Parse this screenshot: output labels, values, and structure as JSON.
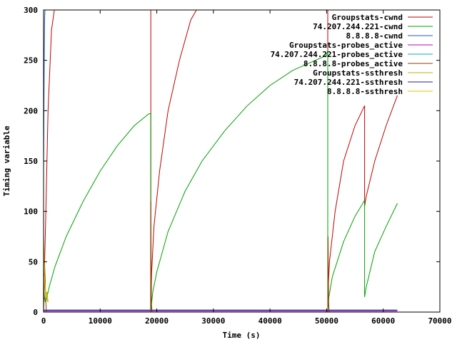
{
  "chart_data": {
    "type": "line",
    "title": "",
    "xlabel": "Time (s)",
    "ylabel": "Timing variable",
    "xlim": [
      0,
      70000
    ],
    "ylim": [
      0,
      300
    ],
    "xticks": [
      "0",
      "10000",
      "20000",
      "30000",
      "40000",
      "50000",
      "60000",
      "70000"
    ],
    "yticks": [
      "0",
      "50",
      "100",
      "150",
      "200",
      "250",
      "300"
    ],
    "grid": false,
    "legend_position": "top-right",
    "series": [
      {
        "name": "Groupstats-cwnd",
        "color": "#c00000",
        "x": [
          0,
          150,
          400,
          800,
          1400,
          1900,
          18950,
          18950,
          19100,
          19500,
          20500,
          22000,
          24000,
          26000,
          27000,
          50200,
          50200,
          50500,
          51500,
          53000,
          55000,
          56700,
          56700,
          57000,
          58500,
          60500,
          62500
        ],
        "y": [
          20,
          40,
          100,
          200,
          280,
          300,
          300,
          5,
          40,
          85,
          140,
          200,
          250,
          290,
          300,
          300,
          15,
          50,
          100,
          150,
          185,
          205,
          105,
          115,
          150,
          185,
          215
        ]
      },
      {
        "name": "74.207.244.221-cwnd",
        "color": "#00a000",
        "x": [
          0,
          150,
          300,
          600,
          1000,
          2000,
          4000,
          7000,
          10000,
          13000,
          16000,
          18600,
          18950,
          18950,
          19300,
          20000,
          22000,
          25000,
          28000,
          32000,
          36000,
          40000,
          44000,
          48000,
          50000,
          50200,
          50200,
          50400,
          51000,
          53000,
          55000,
          56600,
          56700,
          56700,
          57000,
          58500,
          60500,
          62500
        ],
        "y": [
          25,
          15,
          10,
          15,
          25,
          45,
          75,
          110,
          140,
          165,
          185,
          197,
          197,
          2,
          20,
          40,
          80,
          120,
          150,
          180,
          205,
          225,
          240,
          250,
          255,
          260,
          2,
          15,
          35,
          70,
          95,
          110,
          112,
          15,
          25,
          60,
          85,
          108
        ]
      },
      {
        "name": "8.8.8.8-cwnd",
        "color": "#1f5fbf",
        "x": [
          0,
          60,
          120,
          180,
          250,
          350
        ],
        "y": [
          140,
          200,
          260,
          290,
          300,
          300
        ]
      },
      {
        "name": "Groupstats-probes_active",
        "color": "#c000c0",
        "x": [
          0,
          62500
        ],
        "y": [
          1,
          1
        ]
      },
      {
        "name": "74.207.244.221-probes_active",
        "color": "#00b0b0",
        "x": [
          0,
          62500
        ],
        "y": [
          2,
          2
        ]
      },
      {
        "name": "8.8.8.8-probes_active",
        "color": "#8a4000",
        "x": [
          0,
          200,
          300,
          400,
          500,
          18900,
          18950,
          19050,
          19150,
          50200,
          50250,
          50350,
          50450,
          62500
        ],
        "y": [
          0,
          45,
          30,
          10,
          0,
          0,
          110,
          10,
          0,
          0,
          75,
          10,
          0,
          0
        ]
      },
      {
        "name": "Groupstats-ssthresh",
        "color": "#c0b000",
        "x": [
          0,
          100,
          250,
          400,
          600,
          800
        ],
        "y": [
          20,
          35,
          25,
          15,
          20,
          10
        ]
      },
      {
        "name": "74.207.244.221-ssthresh",
        "color": "#1f1f9f",
        "x": [
          0,
          62500
        ],
        "y": [
          2,
          2
        ]
      },
      {
        "name": "8.8.8.8-ssthresh",
        "color": "#e0c000",
        "x": [
          0,
          200,
          400,
          700
        ],
        "y": [
          75,
          30,
          20,
          10
        ]
      }
    ]
  }
}
